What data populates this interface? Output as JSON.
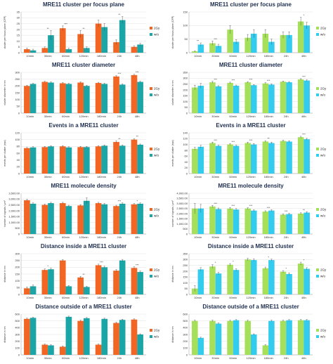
{
  "chart_data": [
    {
      "type": "bar",
      "title": "MRE11 cluster per focus plane",
      "ylabel": "cluster per focus plane (CFP)",
      "categories": [
        "10min",
        "30min",
        "60min",
        "120min",
        "180min",
        "24h",
        "48h"
      ],
      "ylim": [
        0,
        35
      ],
      "yticks": [
        0,
        5,
        10,
        15,
        20,
        25,
        30,
        35
      ],
      "series": [
        {
          "name": "2Gy",
          "color": "#f26522",
          "values": [
            3,
            4,
            21,
            16,
            25,
            9,
            5
          ],
          "errors": [
            1,
            1,
            2,
            3,
            3,
            2,
            1
          ]
        },
        {
          "name": "w/o",
          "color": "#1aa6a6",
          "values": [
            2,
            15,
            3,
            4,
            22,
            28,
            7
          ],
          "errors": [
            1,
            4,
            1,
            1,
            3,
            3,
            1
          ]
        }
      ],
      "annotations": [
        {
          "category": 1,
          "text": "**"
        },
        {
          "category": 2,
          "text": "***"
        },
        {
          "category": 3,
          "text": "**"
        },
        {
          "category": 5,
          "text": "**"
        }
      ]
    },
    {
      "type": "bar",
      "title": "MRE11 cluster per focus plane",
      "ylabel": "cluster per focus plane (CFP)",
      "categories": [
        "10min",
        "30min",
        "60min",
        "120min",
        "180min",
        "24h",
        "48h"
      ],
      "ylim": [
        0,
        150
      ],
      "yticks": [
        0,
        50,
        100,
        150
      ],
      "series": [
        {
          "name": "2Gy",
          "color": "#a6e05a",
          "values": [
            5,
            35,
            85,
            55,
            70,
            65,
            115
          ],
          "errors": [
            2,
            8,
            15,
            12,
            15,
            12,
            15
          ]
        },
        {
          "name": "w/o",
          "color": "#33ccee",
          "values": [
            30,
            25,
            40,
            70,
            40,
            65,
            100
          ],
          "errors": [
            6,
            6,
            8,
            15,
            10,
            12,
            12
          ]
        }
      ],
      "annotations": [
        {
          "category": 0,
          "text": "**"
        },
        {
          "category": 1,
          "text": "***"
        },
        {
          "category": 6,
          "text": "*"
        }
      ]
    },
    {
      "type": "bar",
      "title": "MRE11 cluster diameter",
      "ylabel": "cluster diameter in nm",
      "categories": [
        "10min",
        "30min",
        "60min",
        "120min",
        "180min",
        "24h",
        "48h"
      ],
      "ylim": [
        0,
        300
      ],
      "yticks": [
        0,
        50,
        100,
        150,
        200,
        250,
        300
      ],
      "series": [
        {
          "name": "2Gy",
          "color": "#f26522",
          "values": [
            200,
            230,
            220,
            225,
            222,
            270,
            280
          ],
          "errors": [
            5,
            5,
            5,
            5,
            5,
            6,
            6
          ]
        },
        {
          "name": "w/o",
          "color": "#1aa6a6",
          "values": [
            215,
            225,
            215,
            200,
            215,
            210,
            230
          ],
          "errors": [
            5,
            5,
            5,
            5,
            5,
            5,
            5
          ]
        }
      ],
      "annotations": [
        {
          "category": 5,
          "text": "***"
        },
        {
          "category": 6,
          "text": "***"
        }
      ]
    },
    {
      "type": "bar",
      "title": "MRE11 cluster diameter",
      "ylabel": "cluster diameter in nm",
      "categories": [
        "10min",
        "30min",
        "60min",
        "120min",
        "180min",
        "24h",
        "48h"
      ],
      "ylim": [
        0,
        350
      ],
      "yticks": [
        0,
        50,
        100,
        150,
        200,
        250,
        300,
        350
      ],
      "series": [
        {
          "name": "2Gy",
          "color": "#a6e05a",
          "values": [
            220,
            265,
            260,
            265,
            255,
            270,
            290
          ],
          "errors": [
            20,
            8,
            6,
            6,
            6,
            6,
            6
          ]
        },
        {
          "name": "w/o",
          "color": "#33ccee",
          "values": [
            235,
            230,
            235,
            240,
            245,
            265,
            280
          ],
          "errors": [
            20,
            6,
            6,
            6,
            6,
            6,
            6
          ]
        }
      ],
      "annotations": [
        {
          "category": 1,
          "text": "***"
        },
        {
          "category": 2,
          "text": "***"
        },
        {
          "category": 3,
          "text": "***"
        },
        {
          "category": 4,
          "text": "***"
        },
        {
          "category": 6,
          "text": "***"
        }
      ]
    },
    {
      "type": "bar",
      "title": "Events in a MRE11 cluster",
      "ylabel": "events per cluster (epc)",
      "categories": [
        "10min",
        "30min",
        "60min",
        "120min",
        "180min",
        "24h",
        "48h"
      ],
      "ylim": [
        0,
        120
      ],
      "yticks": [
        0,
        20,
        40,
        60,
        80,
        100,
        120
      ],
      "series": [
        {
          "name": "2Gy",
          "color": "#f26522",
          "values": [
            75,
            78,
            80,
            78,
            80,
            93,
            100
          ],
          "errors": [
            2,
            2,
            2,
            2,
            2,
            3,
            3
          ]
        },
        {
          "name": "w/o",
          "color": "#1aa6a6",
          "values": [
            77,
            80,
            77,
            78,
            82,
            82,
            85
          ],
          "errors": [
            2,
            2,
            2,
            2,
            2,
            2,
            2
          ]
        }
      ],
      "annotations": [
        {
          "category": 5,
          "text": "**"
        },
        {
          "category": 6,
          "text": "**"
        }
      ]
    },
    {
      "type": "bar",
      "title": "Events in a MRE11 cluster",
      "ylabel": "events per cluster (epc)",
      "categories": [
        "10min",
        "30min",
        "60min",
        "120min",
        "180min",
        "24h",
        "48h"
      ],
      "ylim": [
        0,
        140
      ],
      "yticks": [
        0,
        20,
        40,
        60,
        80,
        100,
        120,
        140
      ],
      "series": [
        {
          "name": "2Gy",
          "color": "#a6e05a",
          "values": [
            85,
            105,
            100,
            105,
            110,
            112,
            125
          ],
          "errors": [
            5,
            3,
            3,
            3,
            3,
            3,
            3
          ]
        },
        {
          "name": "w/o",
          "color": "#33ccee",
          "values": [
            92,
            95,
            95,
            100,
            105,
            110,
            118
          ],
          "errors": [
            5,
            3,
            3,
            3,
            3,
            3,
            3
          ]
        }
      ],
      "annotations": [
        {
          "category": 1,
          "text": "***"
        },
        {
          "category": 2,
          "text": "***"
        },
        {
          "category": 3,
          "text": "***"
        },
        {
          "category": 4,
          "text": "**"
        },
        {
          "category": 6,
          "text": "***"
        }
      ]
    },
    {
      "type": "bar",
      "title": "MRE11 molecule density",
      "ylabel": "number of signals / µm²",
      "categories": [
        "10min",
        "30min",
        "60min",
        "120min",
        "180min",
        "24h",
        "48h"
      ],
      "ylim": [
        0,
        3500
      ],
      "yticks": [
        0,
        500,
        1000,
        1500,
        2000,
        2500,
        3000,
        3500
      ],
      "series": [
        {
          "name": "2Gy",
          "color": "#f26522",
          "values": [
            2900,
            2500,
            2650,
            2450,
            2650,
            2400,
            2550
          ],
          "errors": [
            80,
            70,
            70,
            70,
            70,
            70,
            70
          ]
        },
        {
          "name": "w/o",
          "color": "#1aa6a6",
          "values": [
            2600,
            2650,
            2400,
            2850,
            2550,
            2600,
            2600
          ],
          "errors": [
            70,
            70,
            70,
            250,
            70,
            70,
            70
          ]
        }
      ],
      "annotations": [
        {
          "category": 5,
          "text": "***"
        },
        {
          "category": 6,
          "text": "*"
        }
      ]
    },
    {
      "type": "bar",
      "title": "MRE11 molecule density",
      "ylabel": "number of signals / µm²",
      "categories": [
        "10min",
        "30min",
        "60min",
        "120min",
        "180min",
        "24h",
        "48h"
      ],
      "ylim": [
        0,
        4000
      ],
      "yticks": [
        0,
        500,
        1000,
        1500,
        2000,
        2500,
        3000,
        3500,
        4000
      ],
      "series": [
        {
          "name": "2Gy",
          "color": "#a6e05a",
          "values": [
            2500,
            2700,
            2500,
            2500,
            2200,
            1900,
            2000
          ],
          "errors": [
            500,
            100,
            100,
            80,
            80,
            80,
            80
          ]
        },
        {
          "name": "w/o",
          "color": "#33ccee",
          "values": [
            2500,
            2450,
            2400,
            2300,
            2300,
            1950,
            2100
          ],
          "errors": [
            400,
            100,
            100,
            80,
            80,
            80,
            80
          ]
        }
      ],
      "annotations": [
        {
          "category": 1,
          "text": "***"
        },
        {
          "category": 2,
          "text": "***"
        },
        {
          "category": 3,
          "text": "***"
        },
        {
          "category": 4,
          "text": "***"
        },
        {
          "category": 5,
          "text": "***"
        },
        {
          "category": 6,
          "text": "**"
        }
      ]
    },
    {
      "type": "bar",
      "title": "Distance inside a MRE11 cluster",
      "ylabel": "distance in nm",
      "categories": [
        "10min",
        "30min",
        "60min",
        "120min",
        "180min",
        "24h",
        "48h"
      ],
      "ylim": [
        0,
        300
      ],
      "yticks": [
        0,
        50,
        100,
        150,
        200,
        250,
        300
      ],
      "series": [
        {
          "name": "2Gy",
          "color": "#f26522",
          "values": [
            45,
            180,
            250,
            125,
            215,
            175,
            195
          ],
          "errors": [
            10,
            8,
            6,
            8,
            8,
            8,
            8
          ]
        },
        {
          "name": "w/o",
          "color": "#1aa6a6",
          "values": [
            60,
            185,
            60,
            55,
            200,
            250,
            165
          ],
          "errors": [
            10,
            8,
            6,
            6,
            8,
            8,
            8
          ]
        }
      ],
      "annotations": [
        {
          "category": 1,
          "text": "*"
        },
        {
          "category": 3,
          "text": "**"
        },
        {
          "category": 4,
          "text": "***"
        },
        {
          "category": 6,
          "text": "***"
        }
      ]
    },
    {
      "type": "bar",
      "title": "Distance inside a MRE11 cluster",
      "ylabel": "distance in nm",
      "categories": [
        "10min",
        "30min",
        "60min",
        "120min",
        "180min",
        "24h",
        "48h"
      ],
      "ylim": [
        0,
        350
      ],
      "yticks": [
        0,
        50,
        100,
        150,
        200,
        250,
        300,
        350
      ],
      "series": [
        {
          "name": "2Gy",
          "color": "#a6e05a",
          "values": [
            50,
            240,
            255,
            300,
            225,
            195,
            265
          ],
          "errors": [
            25,
            15,
            10,
            10,
            10,
            10,
            12
          ]
        },
        {
          "name": "w/o",
          "color": "#33ccee",
          "values": [
            215,
            180,
            210,
            295,
            295,
            175,
            220
          ],
          "errors": [
            15,
            10,
            10,
            10,
            8,
            10,
            10
          ]
        }
      ],
      "annotations": [
        {
          "category": 1,
          "text": "*"
        },
        {
          "category": 2,
          "text": "*"
        },
        {
          "category": 4,
          "text": "*"
        },
        {
          "category": 5,
          "text": "*"
        },
        {
          "category": 6,
          "text": "*"
        }
      ]
    },
    {
      "type": "bar",
      "title": "Distance outside of a MRE11 cluster",
      "ylabel": "distance in nm",
      "categories": [
        "10min",
        "30min",
        "60min",
        "120min",
        "180min",
        "24h",
        "48h"
      ],
      "ylim": [
        0,
        600
      ],
      "yticks": [
        0,
        100,
        200,
        300,
        400,
        500,
        600
      ],
      "series": [
        {
          "name": "2Gy",
          "color": "#f26522",
          "values": [
            530,
            150,
            120,
            500,
            150,
            470,
            520
          ],
          "errors": [
            10,
            10,
            10,
            10,
            10,
            10,
            10
          ]
        },
        {
          "name": "w/o",
          "color": "#1aa6a6",
          "values": [
            545,
            140,
            560,
            540,
            530,
            515,
            300
          ],
          "errors": [
            10,
            10,
            10,
            10,
            10,
            10,
            10
          ]
        }
      ],
      "annotations": []
    },
    {
      "type": "bar",
      "title": "Distance outside of a MRE11 cluster",
      "ylabel": "distance in nm",
      "categories": [
        "10min",
        "30min",
        "60min",
        "120min",
        "180min",
        "24h",
        "48h"
      ],
      "ylim": [
        0,
        600
      ],
      "yticks": [
        0,
        100,
        200,
        300,
        400,
        500,
        600
      ],
      "series": [
        {
          "name": "2Gy",
          "color": "#a6e05a",
          "values": [
            500,
            500,
            500,
            500,
            140,
            500,
            510
          ],
          "errors": [
            10,
            10,
            10,
            10,
            10,
            10,
            10
          ]
        },
        {
          "name": "w/o",
          "color": "#33ccee",
          "values": [
            250,
            460,
            510,
            300,
            500,
            510,
            510
          ],
          "errors": [
            10,
            10,
            10,
            10,
            10,
            10,
            10
          ]
        }
      ],
      "annotations": []
    }
  ]
}
